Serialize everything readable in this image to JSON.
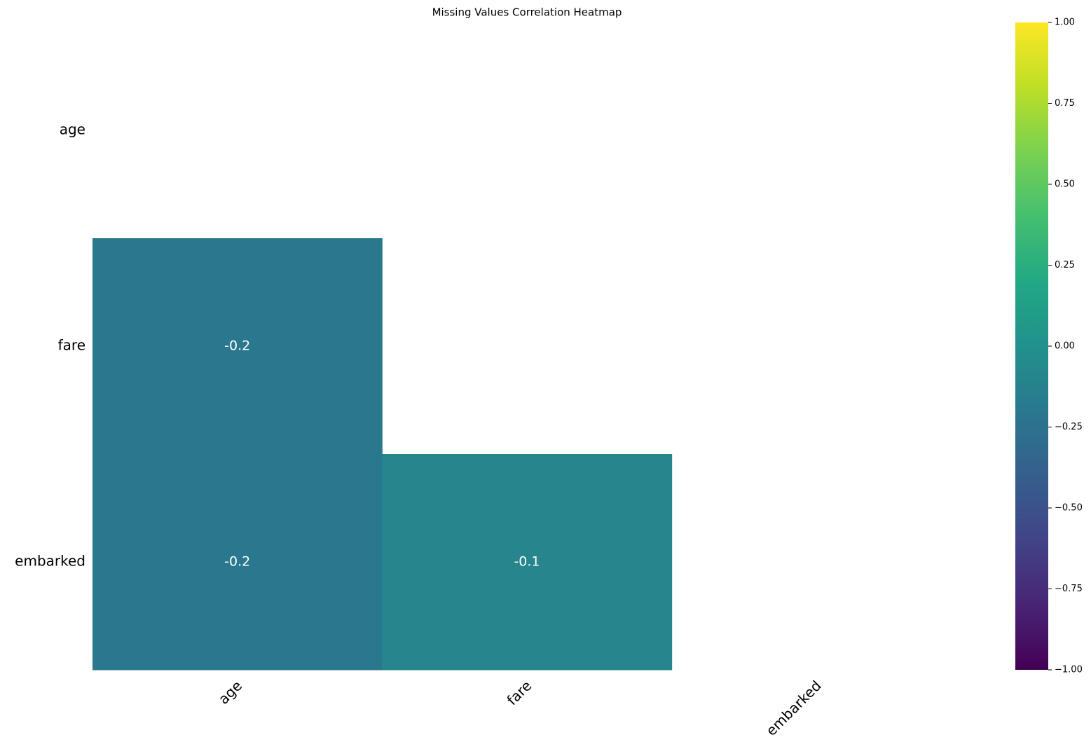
{
  "chart_data": {
    "type": "heatmap",
    "title": "Missing Values Correlation Heatmap",
    "rows": [
      "age",
      "fare",
      "embarked"
    ],
    "columns": [
      "age",
      "fare",
      "embarked"
    ],
    "values": [
      [
        null,
        null,
        null
      ],
      [
        -0.2,
        null,
        null
      ],
      [
        -0.2,
        -0.1,
        null
      ]
    ],
    "colormap": [
      "#440154",
      "#482475",
      "#414487",
      "#355f8d",
      "#2a788e",
      "#21918c",
      "#22a884",
      "#44bf70",
      "#7ad151",
      "#bddf26",
      "#fde725"
    ],
    "clim": [
      -1,
      1
    ],
    "cticks": [
      {
        "value": -1,
        "label": "−1.00"
      },
      {
        "value": -0.75,
        "label": "−0.75"
      },
      {
        "value": -0.5,
        "label": "−0.50"
      },
      {
        "value": -0.25,
        "label": "−0.25"
      },
      {
        "value": 0,
        "label": "0.00"
      },
      {
        "value": 0.25,
        "label": "0.25"
      },
      {
        "value": 0.5,
        "label": "0.50"
      },
      {
        "value": 0.75,
        "label": "0.75"
      },
      {
        "value": 1,
        "label": "1.00"
      }
    ]
  }
}
